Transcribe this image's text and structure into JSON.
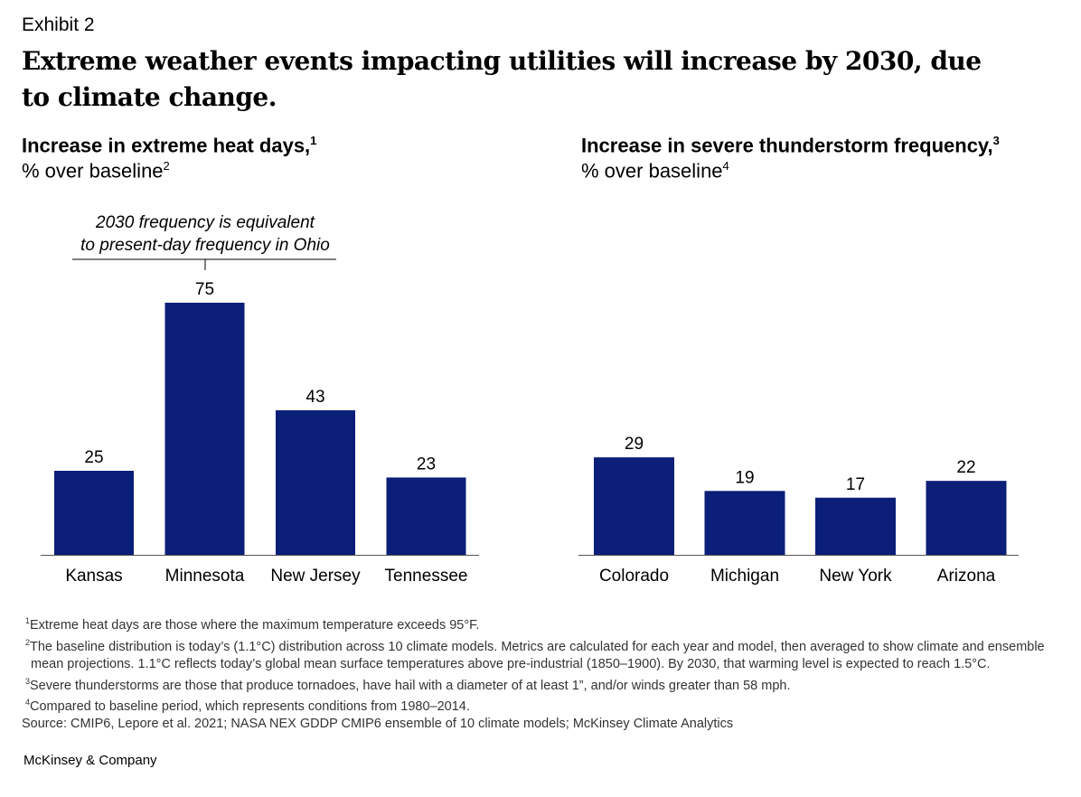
{
  "header": {
    "exhibit": "Exhibit 2",
    "title": "Extreme weather events impacting utilities will increase by 2030, due to climate change."
  },
  "chart_data": [
    {
      "type": "bar",
      "title": "Increase in extreme heat days,",
      "title_sup": "1",
      "subtitle": "% over baseline",
      "subtitle_sup": "2",
      "categories": [
        "Kansas",
        "Minnesota",
        "New Jersey",
        "Tennessee"
      ],
      "values": [
        25,
        75,
        43,
        23
      ],
      "annotation": [
        "2030 frequency is equivalent",
        "to present-day frequency in Ohio"
      ],
      "annotation_target": "Minnesota",
      "ylim": [
        0,
        75
      ],
      "color": "#0b1f78"
    },
    {
      "type": "bar",
      "title": "Increase in severe thunderstorm frequency,",
      "title_sup": "3",
      "subtitle": "% over baseline",
      "subtitle_sup": "4",
      "categories": [
        "Colorado",
        "Michigan",
        "New York",
        "Arizona"
      ],
      "values": [
        29,
        19,
        17,
        22
      ],
      "ylim": [
        0,
        75
      ],
      "color": "#0b1f78"
    }
  ],
  "footnotes": [
    {
      "sup": "1",
      "text": "Extreme heat days are those where the maximum temperature exceeds 95°F."
    },
    {
      "sup": "2",
      "text": "The baseline distribution is today’s (1.1°C) distribution across 10 climate models. Metrics are calculated for each year and model, then averaged to show climate and ensemble mean projections. 1.1°C reflects today’s global mean surface temperatures above pre-industrial (1850–1900). By 2030, that warming level is expected to reach 1.5°C."
    },
    {
      "sup": "3",
      "text": "Severe thunderstorms are those that produce tornadoes, have hail with a diameter of at least 1”, and/or winds greater than 58 mph."
    },
    {
      "sup": "4",
      "text": "Compared to baseline period, which represents conditions from 1980–2014."
    }
  ],
  "source": "Source: CMIP6, Lepore et al. 2021; NASA NEX GDDP CMIP6 ensemble of 10 climate models; McKinsey Climate Analytics",
  "brand": "McKinsey & Company"
}
